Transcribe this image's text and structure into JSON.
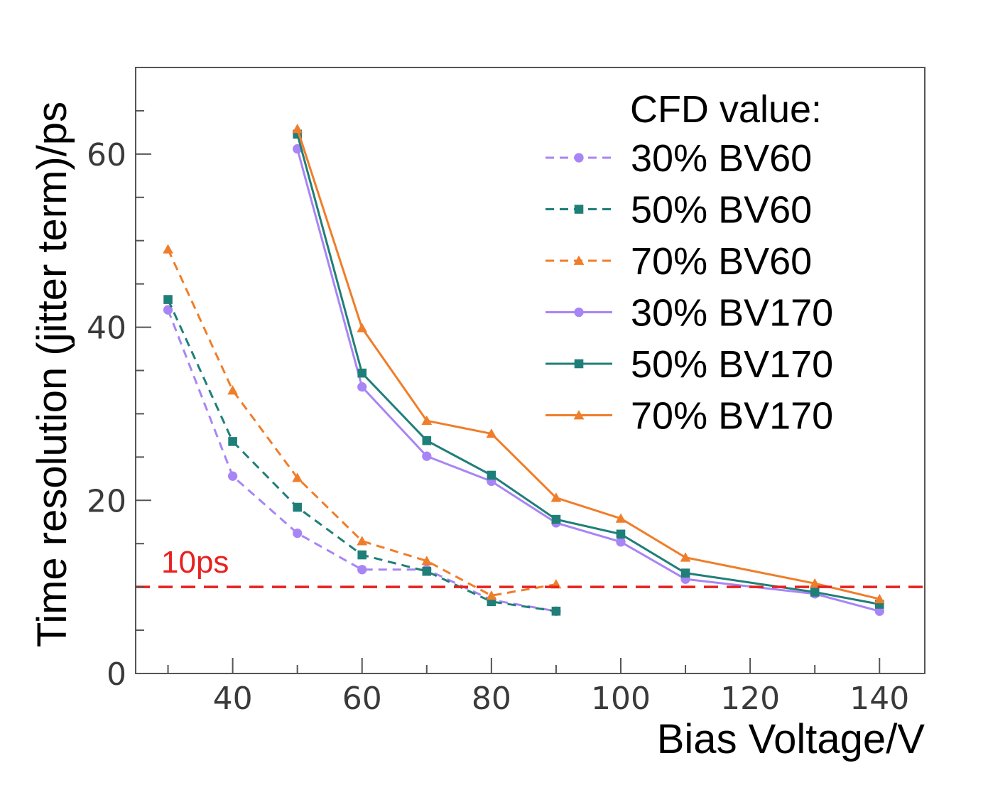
{
  "chart_data": {
    "type": "line",
    "title": "",
    "xlabel": "Bias Voltage/V",
    "ylabel": "Time resolution (jitter term)/ps",
    "xlim": [
      25,
      147
    ],
    "ylim": [
      0,
      70
    ],
    "x_ticks": [
      40,
      60,
      80,
      100,
      120,
      140
    ],
    "y_ticks": [
      0,
      20,
      40,
      60
    ],
    "x_minor_step": 10,
    "y_minor_step": 5,
    "grid": false,
    "legend": {
      "title": "CFD value:",
      "position": "top-right"
    },
    "reference_line": {
      "y": 10,
      "label": "10ps",
      "color": "#e8211e",
      "style": "dashed"
    },
    "series": [
      {
        "name": "30% BV60",
        "color": "#a885f5",
        "marker": "circle",
        "line": "dashed",
        "x": [
          30,
          40,
          50,
          60,
          70,
          80,
          90
        ],
        "y": [
          42.0,
          22.8,
          16.2,
          12.0,
          12.0,
          8.5,
          7.2
        ]
      },
      {
        "name": "50% BV60",
        "color": "#1f7f78",
        "marker": "square",
        "line": "dashed",
        "x": [
          30,
          40,
          50,
          60,
          70,
          80,
          90
        ],
        "y": [
          43.2,
          26.8,
          19.2,
          13.7,
          11.8,
          8.3,
          7.2
        ]
      },
      {
        "name": "70% BV60",
        "color": "#f07d2a",
        "marker": "triangle",
        "line": "dashed",
        "x": [
          30,
          40,
          50,
          60,
          70,
          80,
          90
        ],
        "y": [
          49.0,
          32.7,
          22.6,
          15.3,
          13.0,
          9.0,
          10.3
        ]
      },
      {
        "name": "30% BV170",
        "color": "#a885f5",
        "marker": "circle",
        "line": "solid",
        "x": [
          50,
          60,
          70,
          80,
          90,
          100,
          110,
          130,
          140
        ],
        "y": [
          60.6,
          33.1,
          25.1,
          22.2,
          17.4,
          15.2,
          10.9,
          9.2,
          7.2
        ]
      },
      {
        "name": "50% BV170",
        "color": "#1f7f78",
        "marker": "square",
        "line": "solid",
        "x": [
          50,
          60,
          70,
          80,
          90,
          100,
          110,
          130,
          140
        ],
        "y": [
          62.3,
          34.7,
          26.9,
          22.9,
          17.8,
          16.1,
          11.6,
          9.4,
          8.0
        ]
      },
      {
        "name": "70% BV170",
        "color": "#f07d2a",
        "marker": "triangle",
        "line": "solid",
        "x": [
          50,
          60,
          70,
          80,
          90,
          100,
          110,
          130,
          140
        ],
        "y": [
          62.9,
          39.9,
          29.2,
          27.7,
          20.3,
          17.9,
          13.4,
          10.4,
          8.6
        ]
      }
    ]
  }
}
